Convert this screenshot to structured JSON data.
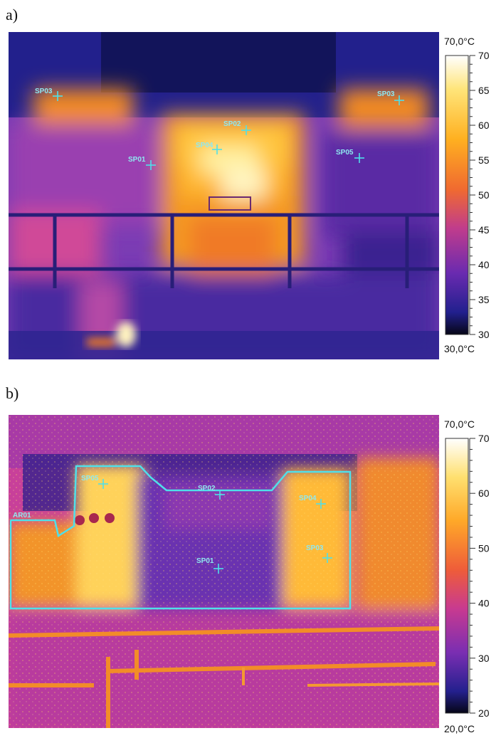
{
  "panel_a": {
    "letter": "a)",
    "scale": {
      "max_label": "70,0°C",
      "min_label": "30,0°C",
      "ticks": [
        "70",
        "65",
        "60",
        "55",
        "50",
        "45",
        "40",
        "35",
        "30"
      ]
    },
    "spots": [
      {
        "label": "SP03"
      },
      {
        "label": "SP02"
      },
      {
        "label": "SP04"
      },
      {
        "label": "SP01"
      },
      {
        "label": "SP05"
      }
    ]
  },
  "panel_b": {
    "letter": "b)",
    "scale": {
      "max_label": "70,0°C",
      "min_label": "20,0°C",
      "ticks": [
        "70",
        "60",
        "50",
        "40",
        "30",
        "20"
      ]
    },
    "area_label": "AR01",
    "spots": [
      {
        "label": "SP05"
      },
      {
        "label": "SP02"
      },
      {
        "label": "SP04"
      },
      {
        "label": "SP03"
      },
      {
        "label": "SP01"
      }
    ]
  },
  "palette": {
    "hot": "#fff6c8",
    "warm": "#ffa21a",
    "mid": "#e0308a",
    "cool": "#5a28b8",
    "cold": "#1c1c8a",
    "marker": "#4fe0ea"
  }
}
